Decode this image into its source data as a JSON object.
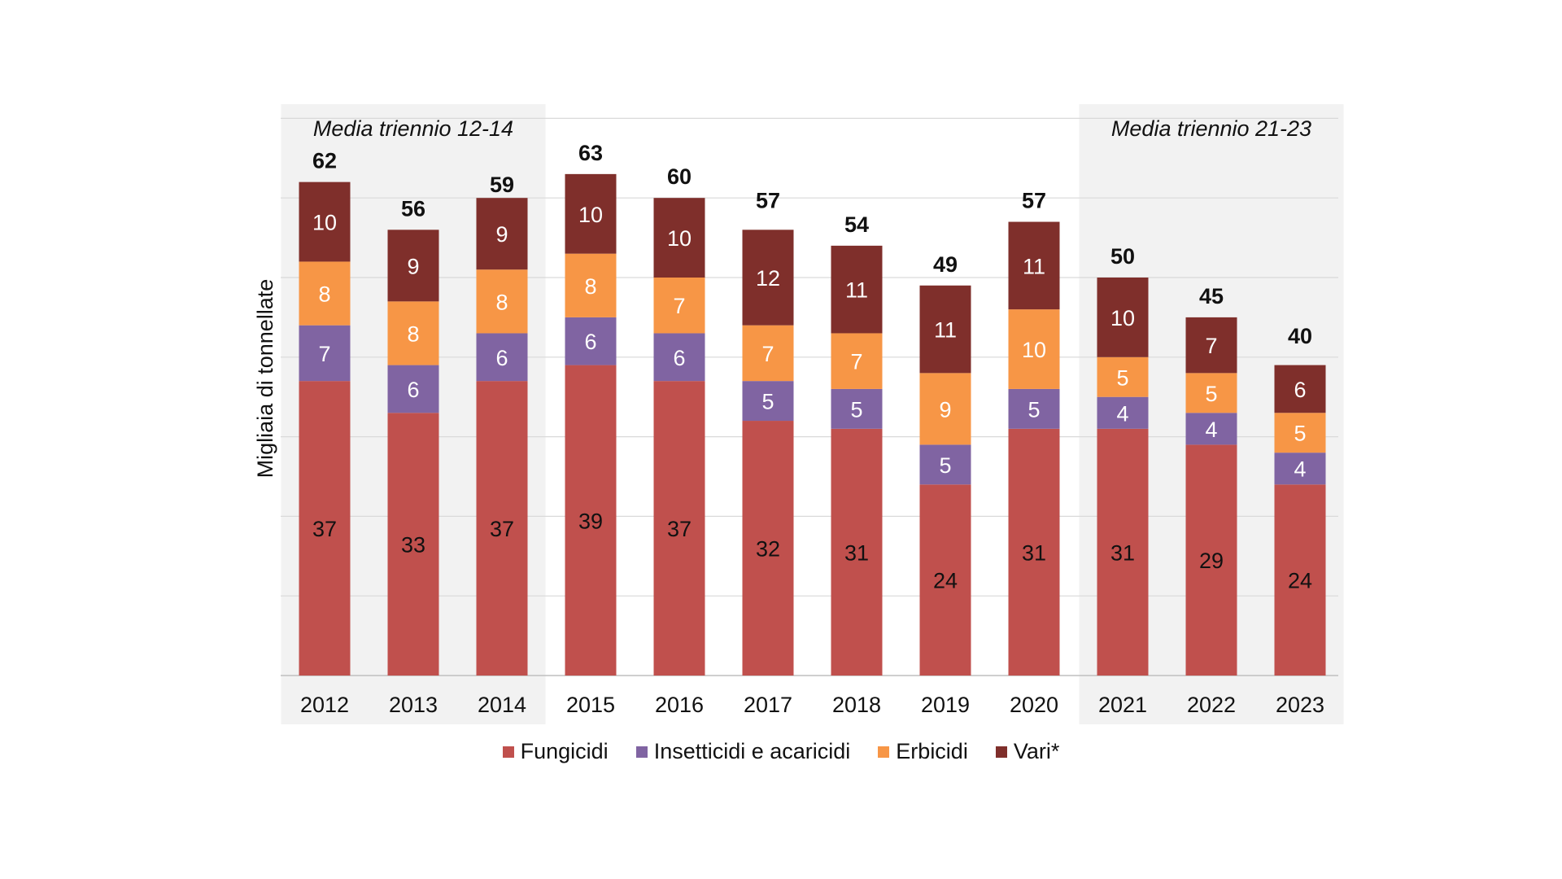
{
  "chart_data": {
    "type": "bar",
    "stacked": true,
    "ylabel": "Migliaia di tonnellate",
    "ylim": [
      0,
      70
    ],
    "grid": true,
    "legend_position": "bottom",
    "categories": [
      "2012",
      "2013",
      "2014",
      "2015",
      "2016",
      "2017",
      "2018",
      "2019",
      "2020",
      "2021",
      "2022",
      "2023"
    ],
    "series": [
      {
        "name": "Fungicidi",
        "color": "#C0504D",
        "values": [
          37,
          33,
          37,
          39,
          37,
          32,
          31,
          24,
          31,
          31,
          29,
          24
        ]
      },
      {
        "name": "Insetticidi e acaricidi",
        "color": "#8064A2",
        "values": [
          7,
          6,
          6,
          6,
          6,
          5,
          5,
          5,
          5,
          4,
          4,
          4
        ]
      },
      {
        "name": "Erbicidi",
        "color": "#F79646",
        "values": [
          8,
          8,
          8,
          8,
          7,
          7,
          7,
          9,
          10,
          5,
          5,
          5
        ]
      },
      {
        "name": "Vari*",
        "color": "#7F2F2B",
        "values": [
          10,
          9,
          9,
          10,
          10,
          12,
          11,
          11,
          11,
          10,
          7,
          6
        ]
      }
    ],
    "totals": [
      62,
      56,
      59,
      63,
      60,
      57,
      54,
      49,
      57,
      50,
      45,
      40
    ],
    "annotations": [
      {
        "text": "Media triennio 12-14",
        "from": "2012",
        "to": "2014"
      },
      {
        "text": "Media triennio 21-23",
        "from": "2021",
        "to": "2023"
      }
    ]
  }
}
